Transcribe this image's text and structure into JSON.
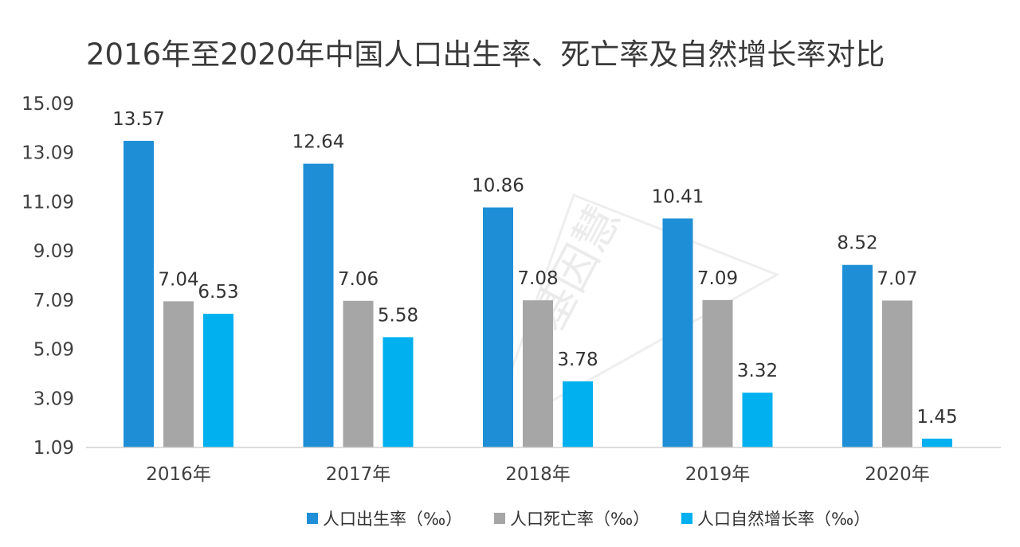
{
  "chart_data": {
    "type": "bar",
    "title": "2016年至2020年中国人口出生率、死亡率及自然增长率对比",
    "categories": [
      "2016年",
      "2017年",
      "2018年",
      "2019年",
      "2020年"
    ],
    "series": [
      {
        "name": "人口出生率（‰）",
        "color": "#1e8fd6",
        "values": [
          13.57,
          12.64,
          10.86,
          10.41,
          8.52
        ]
      },
      {
        "name": "人口死亡率（‰）",
        "color": "#a6a6a6",
        "values": [
          7.04,
          7.06,
          7.08,
          7.09,
          7.07
        ]
      },
      {
        "name": "人口自然增长率（‰）",
        "color": "#00b0ef",
        "values": [
          6.53,
          5.58,
          3.78,
          3.32,
          1.45
        ]
      }
    ],
    "yticks": [
      "1.09",
      "3.09",
      "5.09",
      "7.09",
      "9.09",
      "11.09",
      "13.09",
      "15.09"
    ],
    "ylim": [
      1.09,
      15.09
    ],
    "xlabel": "",
    "ylabel": "",
    "grid": false,
    "legend": "bottom",
    "watermark": "基因慧"
  }
}
